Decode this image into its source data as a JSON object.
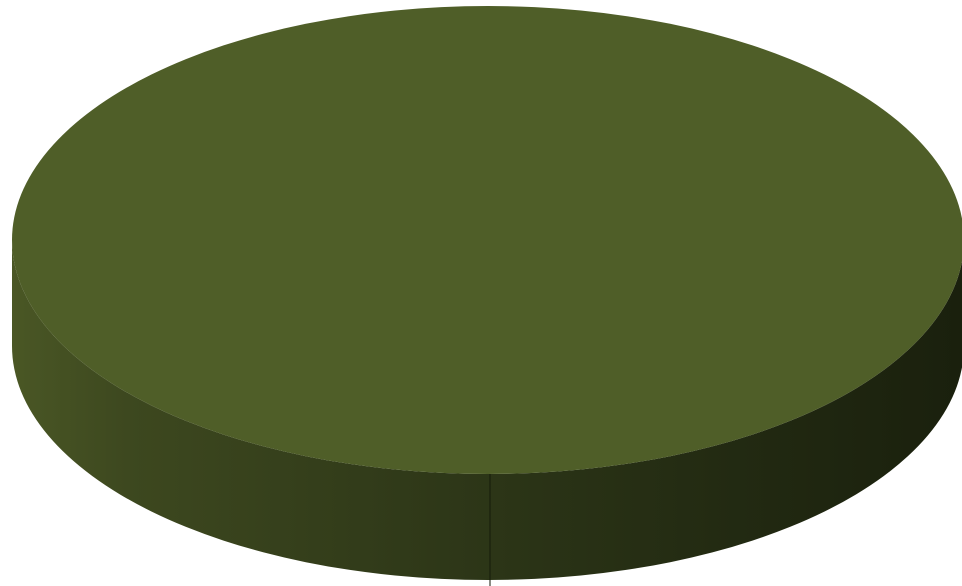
{
  "chart_data": {
    "type": "pie",
    "three_d": true,
    "title": "",
    "legend": "none",
    "categories": [
      ""
    ],
    "values": [
      100
    ],
    "colors": [
      "#4f5e28"
    ]
  }
}
